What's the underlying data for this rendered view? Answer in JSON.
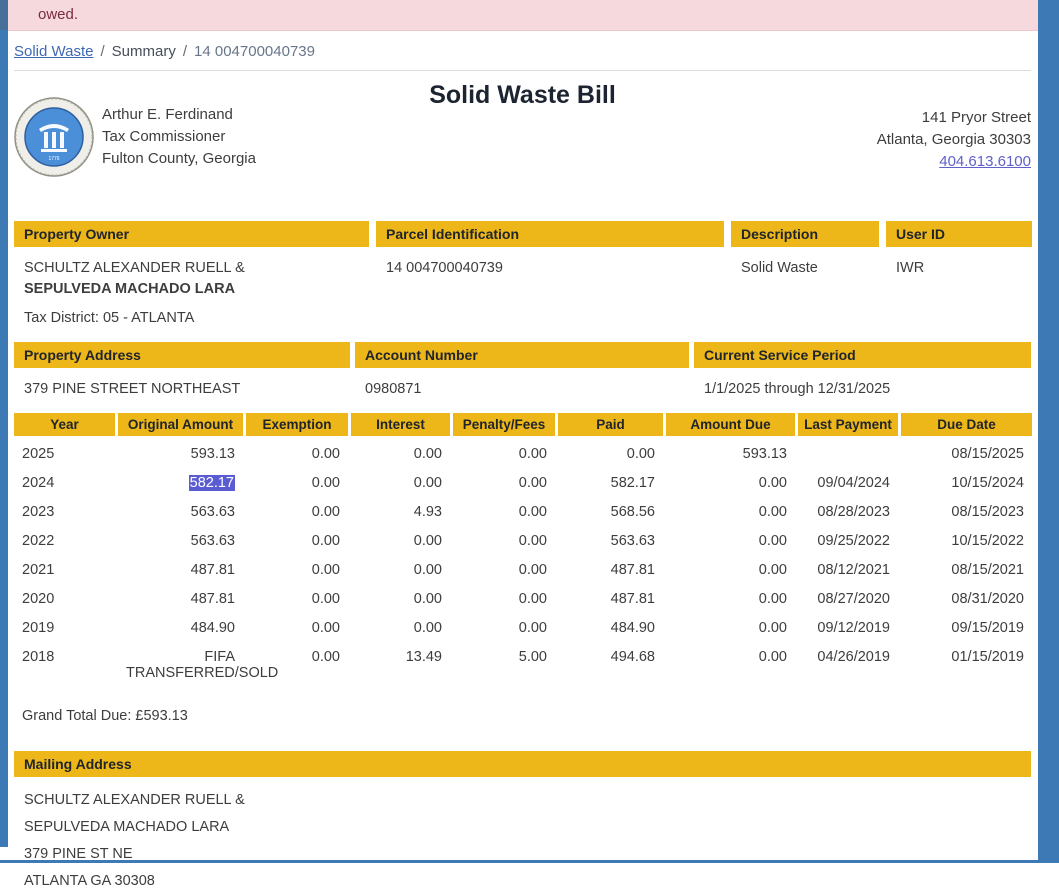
{
  "alert": {
    "text": "owed."
  },
  "breadcrumb": {
    "link_label": "Solid Waste",
    "separator": "/",
    "current": "Summary",
    "parcel": "14 004700040739"
  },
  "header": {
    "title": "Solid Waste Bill",
    "official": {
      "name": "Arthur E. Ferdinand",
      "job_title": "Tax Commissioner",
      "region": "Fulton County, Georgia"
    },
    "office_address": {
      "line1": "141 Pryor Street",
      "line2": "Atlanta, Georgia 30303",
      "phone": "404.613.6100"
    },
    "seal_name": "fulton-county-tax-commissioner-seal"
  },
  "owner_section": {
    "property_owner": {
      "header": "Property Owner",
      "line1": "SCHULTZ ALEXANDER RUELL &",
      "line2": "SEPULVEDA MACHADO LARA"
    },
    "parcel": {
      "header": "Parcel Identification",
      "value": "14 004700040739"
    },
    "description": {
      "header": "Description",
      "value": "Solid Waste"
    },
    "user_id": {
      "header": "User ID",
      "value": "IWR"
    },
    "tax_district": {
      "label": "Tax District:",
      "value": "05 - ATLANTA"
    }
  },
  "address_section": {
    "property_address": {
      "header": "Property Address",
      "value": "379 PINE STREET NORTHEAST"
    },
    "account_number": {
      "header": "Account Number",
      "value": "0980871"
    },
    "service_period": {
      "header": "Current Service Period",
      "value": "1/1/2025 through 12/31/2025"
    }
  },
  "bill_table": {
    "headers": [
      "Year",
      "Original Amount",
      "Exemption",
      "Interest",
      "Penalty/Fees",
      "Paid",
      "Amount Due",
      "Last Payment",
      "Due Date"
    ],
    "rows": [
      {
        "year": "2025",
        "original_amount": "593.13",
        "exemption": "0.00",
        "interest": "0.00",
        "penalty_fees": "0.00",
        "paid": "0.00",
        "amount_due": "593.13",
        "last_payment": "",
        "due_date": "08/15/2025"
      },
      {
        "year": "2024",
        "original_amount": "582.17",
        "selected_cell": "original_amount",
        "exemption": "0.00",
        "interest": "0.00",
        "penalty_fees": "0.00",
        "paid": "582.17",
        "amount_due": "0.00",
        "last_payment": "09/04/2024",
        "due_date": "10/15/2024"
      },
      {
        "year": "2023",
        "original_amount": "563.63",
        "exemption": "0.00",
        "interest": "4.93",
        "penalty_fees": "0.00",
        "paid": "568.56",
        "amount_due": "0.00",
        "last_payment": "08/28/2023",
        "due_date": "08/15/2023"
      },
      {
        "year": "2022",
        "original_amount": "563.63",
        "exemption": "0.00",
        "interest": "0.00",
        "penalty_fees": "0.00",
        "paid": "563.63",
        "amount_due": "0.00",
        "last_payment": "09/25/2022",
        "due_date": "10/15/2022"
      },
      {
        "year": "2021",
        "original_amount": "487.81",
        "exemption": "0.00",
        "interest": "0.00",
        "penalty_fees": "0.00",
        "paid": "487.81",
        "amount_due": "0.00",
        "last_payment": "08/12/2021",
        "due_date": "08/15/2021"
      },
      {
        "year": "2020",
        "original_amount": "487.81",
        "exemption": "0.00",
        "interest": "0.00",
        "penalty_fees": "0.00",
        "paid": "487.81",
        "amount_due": "0.00",
        "last_payment": "08/27/2020",
        "due_date": "08/31/2020"
      },
      {
        "year": "2019",
        "original_amount": "484.90",
        "exemption": "0.00",
        "interest": "0.00",
        "penalty_fees": "0.00",
        "paid": "484.90",
        "amount_due": "0.00",
        "last_payment": "09/12/2019",
        "due_date": "09/15/2019"
      },
      {
        "year": "2018",
        "original_amount": "FIFA",
        "original_amount_line2": "TRANSFERRED/SOLD",
        "exemption": "0.00",
        "interest": "13.49",
        "penalty_fees": "5.00",
        "paid": "494.68",
        "amount_due": "0.00",
        "last_payment": "04/26/2019",
        "due_date": "01/15/2019"
      }
    ]
  },
  "grand_total": {
    "label": "Grand Total Due:",
    "value": "£593.13"
  },
  "mailing_section": {
    "header": "Mailing Address",
    "lines": [
      "SCHULTZ ALEXANDER RUELL &",
      "SEPULVEDA MACHADO LARA",
      "379 PINE ST NE",
      "ATLANTA GA 30308"
    ]
  },
  "colors": {
    "accent_gold": "#EDB71A",
    "frame_blue": "#3D7AB5",
    "alert_bg": "#F6D9DC",
    "alert_text": "#7D2B3F",
    "selection_bg": "#5A5CD2",
    "breadcrumb_link": "#3E68B0",
    "phone_link": "#5F61C9"
  }
}
